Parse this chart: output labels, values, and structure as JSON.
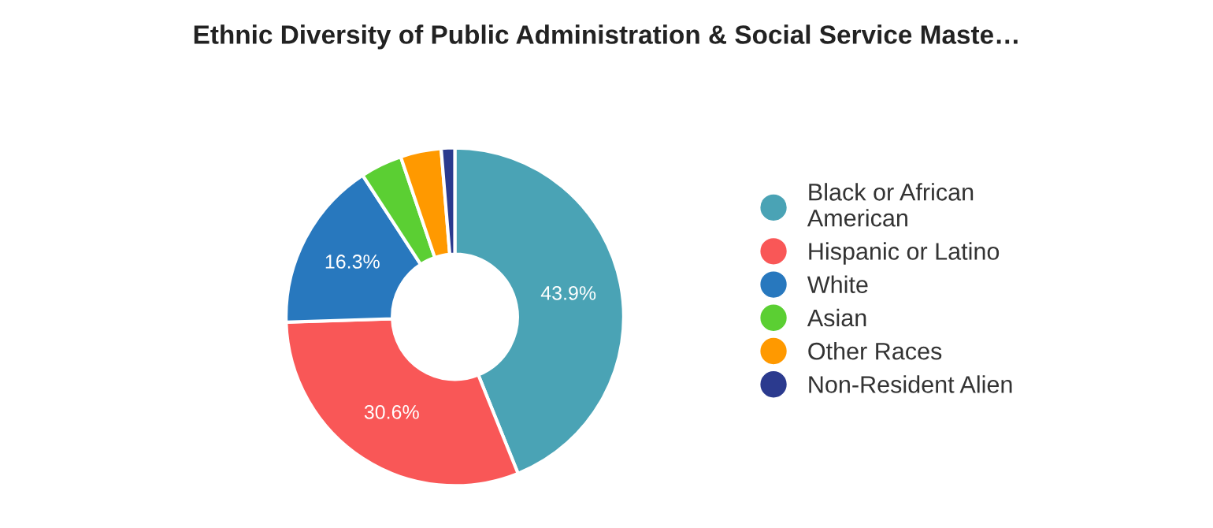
{
  "chart_data": {
    "type": "donut",
    "title": "Ethnic Diversity of Public Administration & Social Service Maste…",
    "categories": [
      "Black or African American",
      "Hispanic or Latino",
      "White",
      "Asian",
      "Other Races",
      "Non-Resident Alien"
    ],
    "values": [
      43.9,
      30.6,
      16.3,
      4.0,
      3.9,
      1.3
    ],
    "colors": [
      "#4aa3b5",
      "#f95757",
      "#2878be",
      "#5bcf33",
      "#ff9900",
      "#2b3a8e"
    ],
    "value_labels": [
      "43.9%",
      "30.6%",
      "16.3%",
      null,
      null,
      null
    ],
    "legend": "right"
  }
}
